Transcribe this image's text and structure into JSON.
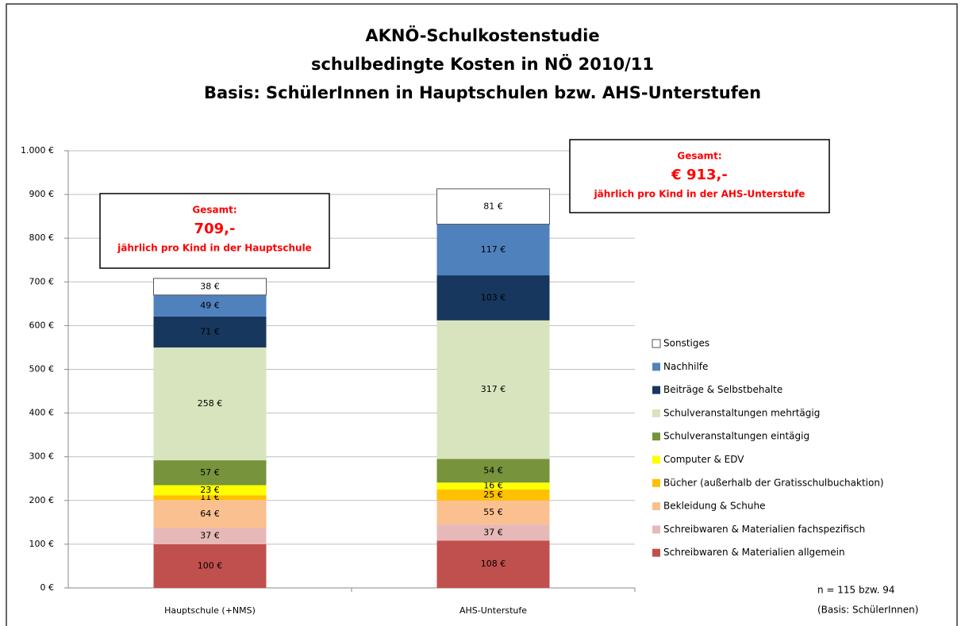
{
  "chart_data": {
    "type": "stacked_bar",
    "title": "AKNÖ-Schulkostenstudie",
    "subtitle": [
      "schulbedingte Kosten in NÖ 2010/11",
      "Basis: SchülerInnen in Hauptschulen bzw. AHS-Unterstufen"
    ],
    "categories": [
      "Hauptschule (+NMS)",
      "AHS-Unterstufe"
    ],
    "series": [
      {
        "name": "Schreibwaren & Materialien allgemein",
        "color": "#c0504d",
        "values": [
          100,
          108
        ],
        "value_labels": [
          "100 €",
          "108 €"
        ]
      },
      {
        "name": "Schreibwaren & Materialien fachspezifisch",
        "color": "#e6b9b8",
        "values": [
          37,
          37
        ],
        "value_labels": [
          "37 €",
          "37 €"
        ]
      },
      {
        "name": "Bekleidung & Schuhe",
        "color": "#fac090",
        "values": [
          64,
          55
        ],
        "value_labels": [
          "64 €",
          "55 €"
        ]
      },
      {
        "name": "Bücher (außerhalb der Gratisschulbuchaktion)",
        "color": "#ffc000",
        "values": [
          11,
          25
        ],
        "value_labels": [
          "11 €",
          "25 €"
        ]
      },
      {
        "name": "Computer & EDV",
        "color": "#ffff00",
        "values": [
          23,
          16
        ],
        "value_labels": [
          "23 €",
          "16 €"
        ]
      },
      {
        "name": "Schulveranstaltungen eintägig",
        "color": "#77933c",
        "values": [
          57,
          54
        ],
        "value_labels": [
          "57 €",
          "54 €"
        ]
      },
      {
        "name": "Schulveranstaltungen mehrtägig",
        "color": "#d7e4bd",
        "values": [
          258,
          317
        ],
        "value_labels": [
          "258 €",
          "317 €"
        ]
      },
      {
        "name": "Beiträge & Selbstbehalte",
        "color": "#17375e",
        "values": [
          71,
          103
        ],
        "value_labels": [
          "71 €",
          "103 €"
        ]
      },
      {
        "name": "Nachhilfe",
        "color": "#4f81bd",
        "values": [
          49,
          117
        ],
        "value_labels": [
          "49 €",
          "117 €"
        ]
      },
      {
        "name": "Sonstiges",
        "color": "#ffffff",
        "values": [
          38,
          81
        ],
        "value_labels": [
          "38 €",
          "81 €"
        ]
      }
    ],
    "ylim": [
      0,
      1000
    ],
    "yticks": [
      {
        "value": 0,
        "label": "0 €"
      },
      {
        "value": 100,
        "label": "100 €"
      },
      {
        "value": 200,
        "label": "200 €"
      },
      {
        "value": 300,
        "label": "300 €"
      },
      {
        "value": 400,
        "label": "400 €"
      },
      {
        "value": 500,
        "label": "500 €"
      },
      {
        "value": 600,
        "label": "600 €"
      },
      {
        "value": 700,
        "label": "700 €"
      },
      {
        "value": 800,
        "label": "800 €"
      },
      {
        "value": 900,
        "label": "900 €"
      },
      {
        "value": 1000,
        "label": "1.000 €"
      }
    ],
    "grid": true,
    "legend": "right",
    "annotations": [
      {
        "lines": [
          "Gesamt:",
          "709,-",
          "jährlich pro Kind in der Hauptschule"
        ]
      },
      {
        "lines": [
          "Gesamt:",
          "€ 913,-",
          "jährlich pro Kind in der AHS-Unterstufe"
        ]
      }
    ],
    "note": [
      "n = 115 bzw. 94",
      "(Basis: SchülerInnen)"
    ]
  }
}
